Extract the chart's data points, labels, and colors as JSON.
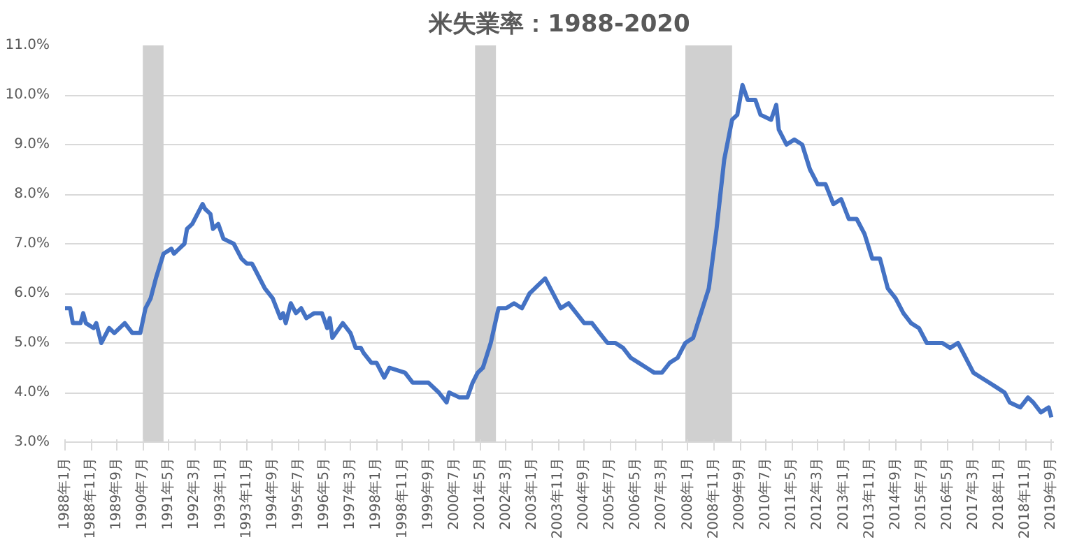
{
  "chart_data": {
    "type": "line",
    "title": "米失業率：1988-2020",
    "x": [
      "1988-01",
      "1988-03",
      "1988-04",
      "1988-06",
      "1988-07",
      "1988-08",
      "1988-09",
      "1988-12",
      "1989-01",
      "1989-03",
      "1989-06",
      "1989-08",
      "1989-12",
      "1990-03",
      "1990-06",
      "1990-08",
      "1990-10",
      "1990-12",
      "1991-03",
      "1991-06",
      "1991-07",
      "1991-11",
      "1991-12",
      "1992-02",
      "1992-06",
      "1992-07",
      "1992-09",
      "1992-10",
      "1992-12",
      "1993-02",
      "1993-06",
      "1993-09",
      "1993-11",
      "1994-01",
      "1994-02",
      "1994-06",
      "1994-09",
      "1994-12",
      "1995-01",
      "1995-02",
      "1995-04",
      "1995-06",
      "1995-08",
      "1995-10",
      "1996-01",
      "1996-04",
      "1996-06",
      "1996-07",
      "1996-08",
      "1996-12",
      "1997-03",
      "1997-05",
      "1997-07",
      "1997-08",
      "1997-11",
      "1998-01",
      "1998-04",
      "1998-06",
      "1998-12",
      "1999-03",
      "1999-05",
      "1999-09",
      "2000-01",
      "2000-04",
      "2000-05",
      "2000-09",
      "2000-12",
      "2001-02",
      "2001-04",
      "2001-06",
      "2001-09",
      "2001-12",
      "2002-03",
      "2002-06",
      "2002-09",
      "2002-12",
      "2003-06",
      "2003-08",
      "2003-12",
      "2004-03",
      "2004-06",
      "2004-09",
      "2004-12",
      "2005-03",
      "2005-06",
      "2005-09",
      "2005-12",
      "2006-03",
      "2006-06",
      "2006-09",
      "2006-12",
      "2007-03",
      "2007-06",
      "2007-09",
      "2007-12",
      "2008-03",
      "2008-06",
      "2008-09",
      "2008-12",
      "2009-03",
      "2009-06",
      "2009-08",
      "2009-10",
      "2009-12",
      "2010-03",
      "2010-05",
      "2010-09",
      "2010-11",
      "2010-12",
      "2011-03",
      "2011-06",
      "2011-09",
      "2011-12",
      "2012-03",
      "2012-06",
      "2012-09",
      "2012-12",
      "2013-03",
      "2013-06",
      "2013-09",
      "2013-12",
      "2014-03",
      "2014-06",
      "2014-09",
      "2014-12",
      "2015-03",
      "2015-06",
      "2015-09",
      "2015-12",
      "2016-03",
      "2016-06",
      "2016-09",
      "2016-12",
      "2017-03",
      "2017-06",
      "2017-09",
      "2017-12",
      "2018-03",
      "2018-05",
      "2018-09",
      "2018-12",
      "2019-02",
      "2019-05",
      "2019-08",
      "2019-09"
    ],
    "series": [
      {
        "color": "#4472c4",
        "values": [
          5.7,
          5.7,
          5.4,
          5.4,
          5.4,
          5.6,
          5.4,
          5.3,
          5.4,
          5.0,
          5.3,
          5.2,
          5.4,
          5.2,
          5.2,
          5.7,
          5.9,
          6.3,
          6.8,
          6.9,
          6.8,
          7.0,
          7.3,
          7.4,
          7.8,
          7.7,
          7.6,
          7.3,
          7.4,
          7.1,
          7.0,
          6.7,
          6.6,
          6.6,
          6.5,
          6.1,
          5.9,
          5.5,
          5.6,
          5.4,
          5.8,
          5.6,
          5.7,
          5.5,
          5.6,
          5.6,
          5.3,
          5.5,
          5.1,
          5.4,
          5.2,
          4.9,
          4.9,
          4.8,
          4.6,
          4.6,
          4.3,
          4.5,
          4.4,
          4.2,
          4.2,
          4.2,
          4.0,
          3.8,
          4.0,
          3.9,
          3.9,
          4.2,
          4.4,
          4.5,
          5.0,
          5.7,
          5.7,
          5.8,
          5.7,
          6.0,
          6.3,
          6.1,
          5.7,
          5.8,
          5.6,
          5.4,
          5.4,
          5.2,
          5.0,
          5.0,
          4.9,
          4.7,
          4.6,
          4.5,
          4.4,
          4.4,
          4.6,
          4.7,
          5.0,
          5.1,
          5.6,
          6.1,
          7.3,
          8.7,
          9.5,
          9.6,
          10.2,
          9.9,
          9.9,
          9.6,
          9.5,
          9.8,
          9.3,
          9.0,
          9.1,
          9.0,
          8.5,
          8.2,
          8.2,
          7.8,
          7.9,
          7.5,
          7.5,
          7.2,
          6.7,
          6.7,
          6.1,
          5.9,
          5.6,
          5.4,
          5.3,
          5.0,
          5.0,
          5.0,
          4.9,
          5.0,
          4.7,
          4.4,
          4.3,
          4.2,
          4.1,
          4.0,
          3.8,
          3.7,
          3.9,
          3.8,
          3.6,
          3.7,
          3.5
        ]
      }
    ],
    "xlim": [
      "1988-01",
      "2019-10"
    ],
    "xticks": [
      {
        "value": "1988-01",
        "label": "1988年1月"
      },
      {
        "value": "1988-11",
        "label": "1988年11月"
      },
      {
        "value": "1989-09",
        "label": "1989年9月"
      },
      {
        "value": "1990-07",
        "label": "1990年7月"
      },
      {
        "value": "1991-05",
        "label": "1991年5月"
      },
      {
        "value": "1992-03",
        "label": "1992年3月"
      },
      {
        "value": "1993-01",
        "label": "1993年1月"
      },
      {
        "value": "1993-11",
        "label": "1993年11月"
      },
      {
        "value": "1994-09",
        "label": "1994年9月"
      },
      {
        "value": "1995-07",
        "label": "1995年7月"
      },
      {
        "value": "1996-05",
        "label": "1996年5月"
      },
      {
        "value": "1997-03",
        "label": "1997年3月"
      },
      {
        "value": "1998-01",
        "label": "1998年1月"
      },
      {
        "value": "1998-11",
        "label": "1998年11月"
      },
      {
        "value": "1999-09",
        "label": "1999年9月"
      },
      {
        "value": "2000-07",
        "label": "2000年7月"
      },
      {
        "value": "2001-05",
        "label": "2001年5月"
      },
      {
        "value": "2002-03",
        "label": "2002年3月"
      },
      {
        "value": "2003-01",
        "label": "2003年1月"
      },
      {
        "value": "2003-11",
        "label": "2003年11月"
      },
      {
        "value": "2004-09",
        "label": "2004年9月"
      },
      {
        "value": "2005-07",
        "label": "2005年7月"
      },
      {
        "value": "2006-05",
        "label": "2006年5月"
      },
      {
        "value": "2007-03",
        "label": "2007年3月"
      },
      {
        "value": "2008-01",
        "label": "2008年1月"
      },
      {
        "value": "2008-11",
        "label": "2008年11月"
      },
      {
        "value": "2009-09",
        "label": "2009年9月"
      },
      {
        "value": "2010-07",
        "label": "2010年7月"
      },
      {
        "value": "2011-05",
        "label": "2011年5月"
      },
      {
        "value": "2012-03",
        "label": "2012年3月"
      },
      {
        "value": "2013-01",
        "label": "2013年1月"
      },
      {
        "value": "2013-11",
        "label": "2013年11月"
      },
      {
        "value": "2014-09",
        "label": "2014年9月"
      },
      {
        "value": "2015-07",
        "label": "2015年7月"
      },
      {
        "value": "2016-05",
        "label": "2016年5月"
      },
      {
        "value": "2017-03",
        "label": "2017年3月"
      },
      {
        "value": "2018-01",
        "label": "2018年1月"
      },
      {
        "value": "2018-11",
        "label": "2018年11月"
      },
      {
        "value": "2019-09",
        "label": "2019年9月"
      }
    ],
    "ylim": [
      3,
      11
    ],
    "yticks": [
      {
        "value": 3,
        "label": "3.0%"
      },
      {
        "value": 4,
        "label": "4.0%"
      },
      {
        "value": 5,
        "label": "5.0%"
      },
      {
        "value": 6,
        "label": "6.0%"
      },
      {
        "value": 7,
        "label": "7.0%"
      },
      {
        "value": 8,
        "label": "8.0%"
      },
      {
        "value": 9,
        "label": "9.0%"
      },
      {
        "value": 10,
        "label": "10.0%"
      },
      {
        "value": 11,
        "label": "11.0%"
      }
    ],
    "grid": "y",
    "bands": [
      {
        "axis": "x",
        "from": "1990-07",
        "to": "1991-03",
        "color": "#d0d0d0"
      },
      {
        "axis": "x",
        "from": "2001-03",
        "to": "2001-11",
        "color": "#d0d0d0"
      },
      {
        "axis": "x",
        "from": "2007-12",
        "to": "2009-06",
        "color": "#d0d0d0"
      }
    ]
  }
}
